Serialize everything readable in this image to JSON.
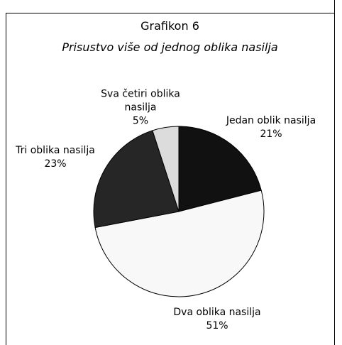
{
  "chart_data": {
    "type": "pie",
    "title": "Grafikon 6",
    "subtitle": "Prisustvo više od jednog oblika nasilja",
    "categories": [
      "Jedan oblik nasilja",
      "Dva oblika nasilja",
      "Tri oblika nasilja",
      "Sva četiri oblika nasilja"
    ],
    "values": [
      21,
      51,
      23,
      5
    ],
    "value_labels": [
      "21%",
      "51%",
      "23%",
      "5%"
    ],
    "colors": [
      "#111111",
      "#f8f8f8",
      "#262626",
      "#dcdcdc"
    ]
  }
}
